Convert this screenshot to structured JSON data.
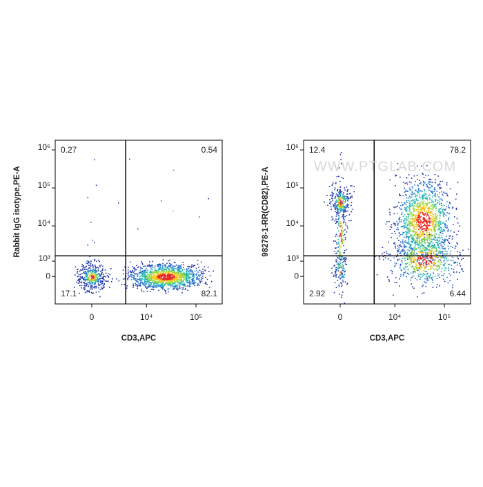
{
  "chart_data": [
    {
      "type": "flow-cytometry",
      "x_label": "CD3,APC",
      "y_label": "Rabbit IgG isotype,PE-A",
      "xlim": [
        -4200,
        336000
      ],
      "ylim": [
        -2400,
        1800000
      ],
      "xticks": [
        0,
        {
          "value": 10000,
          "label": "10⁴"
        },
        {
          "value": 100000,
          "label": "10⁵"
        }
      ],
      "yticks": [
        0,
        {
          "value": 1000,
          "label": "10³"
        },
        {
          "value": 10000,
          "label": "10⁴"
        },
        {
          "value": 100000,
          "label": "10⁵"
        },
        {
          "value": 1000000,
          "label": "10⁶"
        }
      ],
      "gates": {
        "x": 3700,
        "y": 1500
      },
      "quadrant_values": [
        0.27,
        0.54,
        17.1,
        82.1
      ]
    },
    {
      "type": "flow-cytometry",
      "x_label": "CD3,APC",
      "y_label": "98278-1-RR(CD82),PE-A",
      "xlim": [
        -4200,
        336000
      ],
      "ylim": [
        -2400,
        1800000
      ],
      "xticks": [
        0,
        {
          "value": 10000,
          "label": "10⁴"
        },
        {
          "value": 100000,
          "label": "10⁵"
        }
      ],
      "yticks": [
        0,
        {
          "value": 1000,
          "label": "10³"
        },
        {
          "value": 10000,
          "label": "10⁴"
        },
        {
          "value": 100000,
          "label": "10⁵"
        },
        {
          "value": 1000000,
          "label": "10⁶"
        }
      ],
      "gates": {
        "x": 3700,
        "y": 1500
      },
      "quadrant_values": [
        12.4,
        78.2,
        2.92,
        6.44
      ]
    }
  ],
  "watermark": "WWW.PTGLAB.COM"
}
